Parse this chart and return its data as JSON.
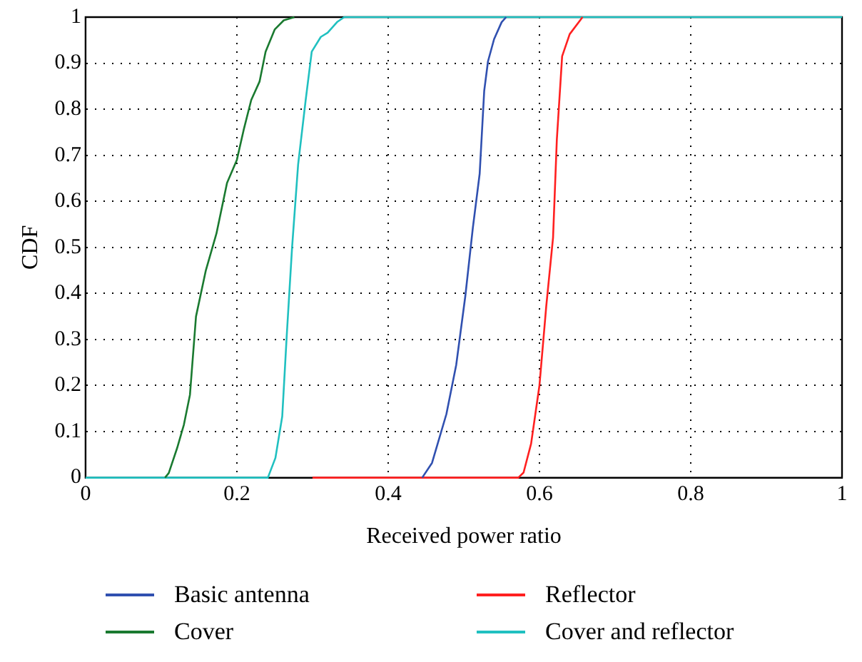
{
  "chart_data": {
    "type": "line",
    "xlabel": "Received power ratio",
    "ylabel": "CDF",
    "xlim": [
      0,
      1
    ],
    "ylim": [
      0,
      1
    ],
    "xticks": [
      0,
      0.2,
      0.4,
      0.6,
      0.8,
      1
    ],
    "yticks": [
      0,
      0.1,
      0.2,
      0.3,
      0.4,
      0.5,
      0.6,
      0.7,
      0.8,
      0.9,
      1
    ],
    "grid": true,
    "legend": "bottom",
    "marker": "none",
    "line_style": "solid",
    "series": [
      {
        "name": "Basic antenna",
        "color": "#3050b0",
        "x": [
          0.445,
          0.458,
          0.477,
          0.49,
          0.502,
          0.512,
          0.521,
          0.527,
          0.532,
          0.54,
          0.55,
          0.556
        ],
        "values": [
          0,
          0.032,
          0.138,
          0.245,
          0.394,
          0.543,
          0.66,
          0.84,
          0.904,
          0.952,
          0.989,
          1
        ]
      },
      {
        "name": "Cover",
        "color": "#1a7a30",
        "x": [
          0.105,
          0.11,
          0.121,
          0.13,
          0.138,
          0.146,
          0.159,
          0.173,
          0.187,
          0.2,
          0.209,
          0.219,
          0.23,
          0.238,
          0.25,
          0.262,
          0.276
        ],
        "values": [
          0,
          0.01,
          0.064,
          0.115,
          0.18,
          0.35,
          0.45,
          0.53,
          0.64,
          0.69,
          0.755,
          0.82,
          0.86,
          0.925,
          0.973,
          0.993,
          1
        ]
      },
      {
        "name": "Reflector",
        "color": "#ff2020",
        "x": [
          0.3,
          0.572,
          0.579,
          0.589,
          0.6,
          0.609,
          0.618,
          0.623,
          0.63,
          0.64,
          0.657
        ],
        "values": [
          0,
          0,
          0.011,
          0.074,
          0.2,
          0.372,
          0.521,
          0.734,
          0.915,
          0.963,
          1
        ]
      },
      {
        "name": "Cover and reflector",
        "color": "#20c0c0",
        "x": [
          0,
          0.241,
          0.251,
          0.26,
          0.266,
          0.273,
          0.281,
          0.291,
          0.299,
          0.311,
          0.32,
          0.333,
          0.342,
          1
        ],
        "values": [
          0,
          0,
          0.043,
          0.133,
          0.31,
          0.5,
          0.68,
          0.82,
          0.925,
          0.957,
          0.966,
          0.99,
          1,
          1
        ]
      }
    ]
  }
}
